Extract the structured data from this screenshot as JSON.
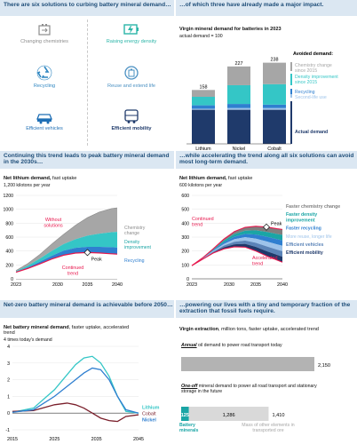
{
  "panel1": {
    "header": "There are six solutions to curbing battery mineral demand…",
    "solutions": [
      {
        "label": "Changing chemistries",
        "color": "#8c8c8c",
        "icon": "battery-swap-icon"
      },
      {
        "label": "Raising energy density",
        "color": "#2bb5a8",
        "icon": "battery-bolt-icon"
      },
      {
        "label": "Recycling",
        "color": "#2e86c1",
        "icon": "recycle-icon"
      },
      {
        "label": "Reuse and extend life",
        "color": "#4a90c2",
        "icon": "battery-reuse-icon"
      },
      {
        "label": "Efficient vehicles",
        "color": "#1f6fb5",
        "icon": "car-icon"
      },
      {
        "label": "Efficient mobility",
        "color": "#1f3a6b",
        "icon": "bus-icon"
      }
    ]
  },
  "panel2": {
    "header": "…of which three have already made a major impact.",
    "title": "Virgin mineral demand for batteries in 2023",
    "subtitle": "actual demand = 100",
    "legend_title": "Avoided demand:",
    "legend": [
      {
        "label": "Chemistry change since 2015",
        "color": "#a6a6a6"
      },
      {
        "label": "Density improvement since 2015",
        "color": "#34c6c6"
      },
      {
        "label": "Recycling",
        "color": "#2f7fd0"
      },
      {
        "label": "Second-life use",
        "color": "#9dc3ea"
      },
      {
        "label": "Actual demand",
        "color": "#1f3a6b"
      }
    ]
  },
  "panel3": {
    "header": "Continuing this trend leads to peak battery mineral demand in the 2030s…",
    "title": "Net lithium demand,",
    "title2": "fast uptake",
    "unit": "1,200 kilotons per year",
    "ann_without": "Without solutions",
    "ann_chem": "Chemistry change",
    "ann_density": "Density improvement",
    "ann_recycling": "Recycling",
    "ann_continued": "Continued trend",
    "ann_peak": "Peak"
  },
  "panel4": {
    "header": "…while accelerating the trend along all six solutions can avoid most long-term demand.",
    "title": "Net lithium demand,",
    "title2": "fast uptake",
    "unit": "600 kilotons per year",
    "ann_continued": "Continued trend",
    "ann_accelerated": "Accelerated trend",
    "ann_peak": "Peak",
    "legend": [
      {
        "label": "Faster chemistry change",
        "color": "#7f7f7f"
      },
      {
        "label": "Faster density improvement",
        "color": "#1aa5a5"
      },
      {
        "label": "Faster recycling",
        "color": "#2f7fd0"
      },
      {
        "label": "More reuse, longer life",
        "color": "#9dc3ea"
      },
      {
        "label": "Efficient vehicles",
        "color": "#5b84b8"
      },
      {
        "label": "Efficient mobility",
        "color": "#1f3a6b"
      }
    ]
  },
  "panel5": {
    "header": "Net-zero battery mineral demand is achievable before 2050…",
    "title": "Net battery mineral demand",
    "title2": ", faster uptake, accelerated trend",
    "unit": "4 times today's demand"
  },
  "panel6": {
    "header": "…powering our lives with a tiny and temporary fraction of the extraction that fossil fuels require.",
    "title": "Virgin extraction",
    "title2": ", million tons, faster uptake, accelerated trend",
    "row1_label_em": "Annual",
    "row1_label_rest": " oil demand to power road transport today",
    "row1_value": "2,150",
    "row2_label_em": "One-off",
    "row2_label_rest": " mineral demand to power all road transport and stationary storage in the future",
    "row2_battery_value": "125",
    "row2_mass_value": "1,286",
    "row2_total": "1,410",
    "battery_label": "Battery minerals",
    "mass_label": "Mass of other elements in transported ore"
  },
  "chart_data": [
    {
      "type": "bar",
      "stacked": true,
      "categories": [
        "Lithium",
        "Nickel",
        "Cobalt"
      ],
      "totals": [
        158,
        227,
        238
      ],
      "series": [
        {
          "name": "Actual demand",
          "values": [
            100,
            100,
            100
          ],
          "color": "#1f3a6b"
        },
        {
          "name": "Second-life use",
          "values": [
            3,
            5,
            5
          ],
          "color": "#9dc3ea"
        },
        {
          "name": "Recycling",
          "values": [
            10,
            12,
            10
          ],
          "color": "#2f7fd0"
        },
        {
          "name": "Density improvement since 2015",
          "values": [
            25,
            55,
            60
          ],
          "color": "#34c6c6"
        },
        {
          "name": "Chemistry change since 2015",
          "values": [
            20,
            55,
            63
          ],
          "color": "#a6a6a6"
        }
      ],
      "ylim": [
        0,
        250
      ]
    },
    {
      "type": "area",
      "x": [
        2023,
        2025,
        2027,
        2029,
        2031,
        2033,
        2035,
        2037,
        2039,
        2040
      ],
      "xticks": [
        2023,
        2030,
        2035,
        2040
      ],
      "yticks": [
        0,
        200,
        400,
        600,
        800,
        1000,
        1200
      ],
      "ylim": [
        0,
        1200
      ],
      "series": [
        {
          "name": "Without solutions",
          "values": [
            120,
            220,
            350,
            500,
            640,
            770,
            880,
            960,
            1010,
            1020
          ],
          "color": "#a6a6a6"
        },
        {
          "name": "Chemistry change",
          "values": [
            110,
            190,
            290,
            400,
            500,
            570,
            620,
            650,
            670,
            675
          ],
          "color": "#34c6c6"
        },
        {
          "name": "Density improvement",
          "values": [
            100,
            165,
            245,
            330,
            405,
            445,
            460,
            460,
            455,
            450
          ],
          "color": "#2f7fd0"
        },
        {
          "name": "Continued trend",
          "values": [
            95,
            150,
            215,
            285,
            340,
            370,
            378,
            372,
            360,
            355
          ],
          "color": "#e8174d"
        }
      ]
    },
    {
      "type": "area",
      "x": [
        2023,
        2025,
        2027,
        2029,
        2031,
        2033,
        2035,
        2037,
        2039,
        2040
      ],
      "xticks": [
        2023,
        2030,
        2035,
        2040
      ],
      "yticks": [
        0,
        100,
        200,
        300,
        400,
        500,
        600
      ],
      "ylim": [
        0,
        600
      ],
      "series": [
        {
          "name": "Continued trend",
          "values": [
            95,
            150,
            215,
            285,
            340,
            370,
            378,
            372,
            360,
            355
          ],
          "color": "#e8174d"
        },
        {
          "name": "Accelerated trend",
          "values": [
            95,
            140,
            185,
            215,
            230,
            228,
            200,
            165,
            135,
            120
          ],
          "color": "#e8174d"
        }
      ]
    },
    {
      "type": "line",
      "x": [
        2015,
        2020,
        2025,
        2028,
        2030,
        2032,
        2034,
        2036,
        2038,
        2040,
        2042,
        2045
      ],
      "xticks": [
        2015,
        2025,
        2035,
        2045
      ],
      "yticks": [
        -1,
        0,
        1,
        2,
        3,
        4
      ],
      "ylim": [
        -1,
        4
      ],
      "series": [
        {
          "name": "Lithium",
          "values": [
            0.05,
            0.3,
            1.4,
            2.3,
            2.9,
            3.3,
            3.4,
            3.0,
            2.2,
            1.0,
            0.1,
            0.0
          ],
          "color": "#34c6c6"
        },
        {
          "name": "Cobalt",
          "values": [
            0.1,
            0.15,
            0.5,
            0.6,
            0.5,
            0.3,
            0.0,
            -0.3,
            -0.45,
            -0.5,
            -0.2,
            -0.1
          ],
          "color": "#7a1f2b"
        },
        {
          "name": "Nickel",
          "values": [
            0.05,
            0.2,
            1.0,
            1.6,
            2.0,
            2.4,
            2.7,
            2.6,
            2.0,
            1.0,
            0.2,
            0.0
          ],
          "color": "#2f7fd0"
        }
      ]
    },
    {
      "type": "bar",
      "orientation": "horizontal",
      "categories": [
        "Annual oil demand",
        "One-off mineral demand"
      ],
      "series": [
        {
          "name": "Oil",
          "values": [
            2150,
            0
          ],
          "color": "#b3b3b3"
        },
        {
          "name": "Battery minerals",
          "values": [
            0,
            125
          ],
          "color": "#1aa5a5"
        },
        {
          "name": "Mass of other elements in transported ore",
          "values": [
            0,
            1286
          ],
          "color": "#d9d9d9"
        }
      ]
    }
  ]
}
